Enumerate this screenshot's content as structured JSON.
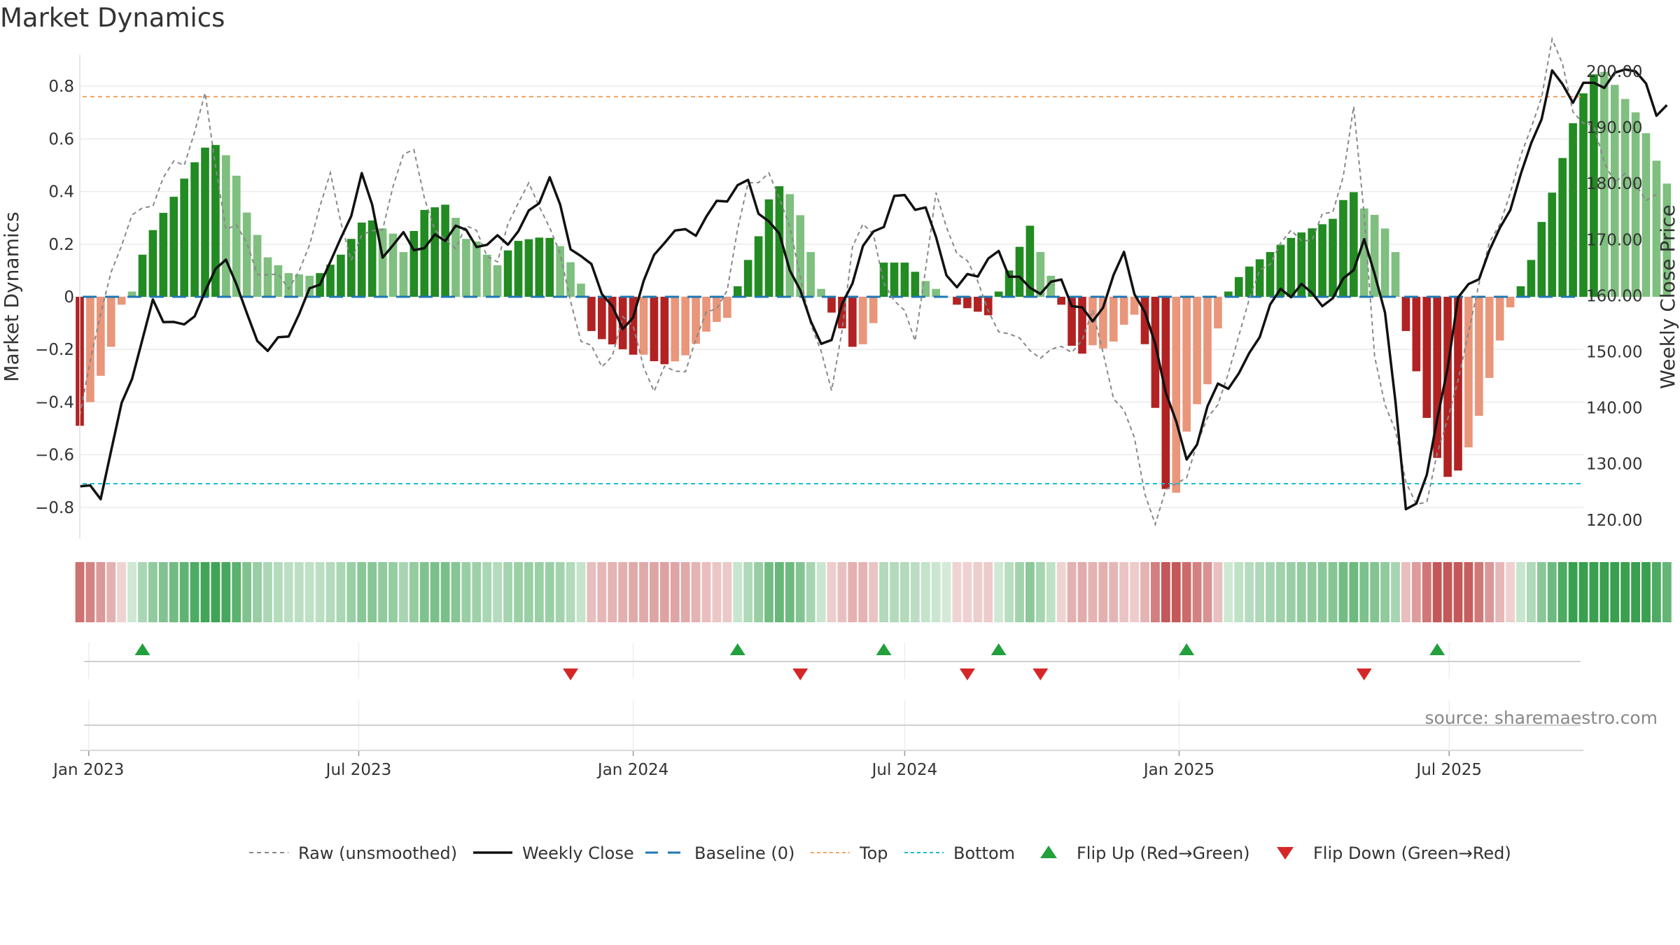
{
  "colors": {
    "bull_strong": "#228B22",
    "bull_weak": "#7FBF7F",
    "bear_strong": "#B22222",
    "bear_weak": "#E9967A",
    "raw": "#888888",
    "close": "#111111",
    "baseline": "#1F77B4",
    "top": "#F4A460",
    "bottom": "#17BECF",
    "flip_up": "#22A03C",
    "flip_down": "#D62728",
    "grid": "#EBEBEB"
  },
  "chart_data": {
    "type": "bar",
    "title": "Market Dynamics",
    "ylabel_left": "Market Dynamics",
    "ylabel_right": "Weekly Close Price",
    "source": "source: sharemaestro.com",
    "left_ylim": [
      -0.92,
      0.92
    ],
    "right_ylim": [
      116.6,
      203.0
    ],
    "left_ticks": [
      0.8,
      0.6,
      0.4,
      0.2,
      0,
      -0.2,
      -0.4,
      -0.6,
      -0.8
    ],
    "left_tick_labels": [
      "0.8",
      "0.6",
      "0.4",
      "0.2",
      "0",
      "−0.2",
      "−0.4",
      "−0.6",
      "−0.8"
    ],
    "right_ticks": [
      200,
      190,
      180,
      170,
      160,
      150,
      140,
      130,
      120
    ],
    "right_tick_labels": [
      "200.00",
      "190.00",
      "180.00",
      "170.00",
      "160.00",
      "150.00",
      "140.00",
      "130.00",
      "120.00"
    ],
    "x_start": "2022-12-26",
    "x_end": "2025-09-29",
    "x_ticks": [
      {
        "date": "2023-01-01",
        "label": "Jan 2023"
      },
      {
        "date": "2023-07-01",
        "label": "Jul 2023"
      },
      {
        "date": "2024-01-01",
        "label": "Jan 2024"
      },
      {
        "date": "2024-07-01",
        "label": "Jul 2024"
      },
      {
        "date": "2025-01-01",
        "label": "Jan 2025"
      },
      {
        "date": "2025-07-01",
        "label": "Jul 2025"
      }
    ],
    "top_level": 0.76,
    "bottom_level": -0.71,
    "baseline": 0,
    "series": [
      {
        "name": "Raw (unsmoothed)",
        "keys": [
          {
            "d": "2022-12-26",
            "v": -0.45
          },
          {
            "d": "2023-01-16",
            "v": 0.12
          },
          {
            "d": "2023-02-06",
            "v": 0.35
          },
          {
            "d": "2023-02-20",
            "v": 0.42
          },
          {
            "d": "2023-03-06",
            "v": 0.55
          },
          {
            "d": "2023-03-20",
            "v": 0.72
          },
          {
            "d": "2023-04-03",
            "v": 0.3
          },
          {
            "d": "2023-04-24",
            "v": 0.12
          },
          {
            "d": "2023-05-15",
            "v": 0.03
          },
          {
            "d": "2023-05-29",
            "v": 0.2
          },
          {
            "d": "2023-06-12",
            "v": 0.46
          },
          {
            "d": "2023-06-26",
            "v": 0.15
          },
          {
            "d": "2023-07-17",
            "v": 0.3
          },
          {
            "d": "2023-08-07",
            "v": 0.6
          },
          {
            "d": "2023-08-21",
            "v": 0.2
          },
          {
            "d": "2023-09-11",
            "v": 0.25
          },
          {
            "d": "2023-10-02",
            "v": 0.15
          },
          {
            "d": "2023-10-23",
            "v": 0.45
          },
          {
            "d": "2023-11-13",
            "v": 0.15
          },
          {
            "d": "2023-11-27",
            "v": -0.15
          },
          {
            "d": "2023-12-11",
            "v": -0.28
          },
          {
            "d": "2023-12-25",
            "v": -0.08
          },
          {
            "d": "2024-01-15",
            "v": -0.32
          },
          {
            "d": "2024-01-29",
            "v": -0.3
          },
          {
            "d": "2024-02-19",
            "v": -0.1
          },
          {
            "d": "2024-03-04",
            "v": 0.05
          },
          {
            "d": "2024-03-18",
            "v": 0.42
          },
          {
            "d": "2024-04-01",
            "v": 0.48
          },
          {
            "d": "2024-04-15",
            "v": 0.25
          },
          {
            "d": "2024-04-29",
            "v": -0.08
          },
          {
            "d": "2024-05-13",
            "v": -0.38
          },
          {
            "d": "2024-05-27",
            "v": 0.2
          },
          {
            "d": "2024-06-10",
            "v": 0.25
          },
          {
            "d": "2024-06-24",
            "v": -0.05
          },
          {
            "d": "2024-07-08",
            "v": -0.12
          },
          {
            "d": "2024-07-22",
            "v": 0.35
          },
          {
            "d": "2024-08-12",
            "v": 0.12
          },
          {
            "d": "2024-09-02",
            "v": -0.12
          },
          {
            "d": "2024-09-23",
            "v": -0.2
          },
          {
            "d": "2024-10-14",
            "v": -0.22
          },
          {
            "d": "2024-11-04",
            "v": -0.1
          },
          {
            "d": "2024-11-25",
            "v": -0.45
          },
          {
            "d": "2024-12-16",
            "v": -0.84
          },
          {
            "d": "2025-01-06",
            "v": -0.65
          },
          {
            "d": "2025-01-27",
            "v": -0.4
          },
          {
            "d": "2025-02-10",
            "v": -0.15
          },
          {
            "d": "2025-02-24",
            "v": 0.1
          },
          {
            "d": "2025-03-10",
            "v": 0.2
          },
          {
            "d": "2025-03-31",
            "v": 0.25
          },
          {
            "d": "2025-04-14",
            "v": 0.3
          },
          {
            "d": "2025-04-28",
            "v": 0.72
          },
          {
            "d": "2025-05-12",
            "v": -0.2
          },
          {
            "d": "2025-06-02",
            "v": -0.72
          },
          {
            "d": "2025-06-16",
            "v": -0.78
          },
          {
            "d": "2025-07-07",
            "v": -0.3
          },
          {
            "d": "2025-07-28",
            "v": 0.2
          },
          {
            "d": "2025-08-18",
            "v": 0.5
          },
          {
            "d": "2025-09-08",
            "v": 0.95
          },
          {
            "d": "2025-09-22",
            "v": 0.75
          },
          {
            "d": "2025-10-13",
            "v": 0.52
          },
          {
            "d": "2025-11-03",
            "v": 0.4
          },
          {
            "d": "2025-11-17",
            "v": 0.4
          }
        ]
      },
      {
        "name": "Weekly Close",
        "keys": [
          {
            "d": "2022-12-26",
            "v": 126.0
          },
          {
            "d": "2023-01-09",
            "v": 125.5
          },
          {
            "d": "2023-01-23",
            "v": 139.0
          },
          {
            "d": "2023-02-13",
            "v": 159.0
          },
          {
            "d": "2023-03-06",
            "v": 153.0
          },
          {
            "d": "2023-03-20",
            "v": 161.0
          },
          {
            "d": "2023-04-03",
            "v": 168.0
          },
          {
            "d": "2023-04-17",
            "v": 155.0
          },
          {
            "d": "2023-05-01",
            "v": 150.5
          },
          {
            "d": "2023-05-22",
            "v": 156.0
          },
          {
            "d": "2023-06-05",
            "v": 163.0
          },
          {
            "d": "2023-06-19",
            "v": 170.0
          },
          {
            "d": "2023-07-03",
            "v": 181.0
          },
          {
            "d": "2023-07-17",
            "v": 168.0
          },
          {
            "d": "2023-07-31",
            "v": 171.0
          },
          {
            "d": "2023-08-14",
            "v": 167.5
          },
          {
            "d": "2023-09-04",
            "v": 173.0
          },
          {
            "d": "2023-09-25",
            "v": 168.0
          },
          {
            "d": "2023-10-16",
            "v": 172.0
          },
          {
            "d": "2023-11-06",
            "v": 180.0
          },
          {
            "d": "2023-11-20",
            "v": 170.0
          },
          {
            "d": "2023-12-04",
            "v": 165.0
          },
          {
            "d": "2023-12-25",
            "v": 153.0
          },
          {
            "d": "2024-01-08",
            "v": 163.0
          },
          {
            "d": "2024-01-22",
            "v": 170.0
          },
          {
            "d": "2024-02-05",
            "v": 171.0
          },
          {
            "d": "2024-02-26",
            "v": 176.0
          },
          {
            "d": "2024-03-18",
            "v": 180.0
          },
          {
            "d": "2024-04-08",
            "v": 170.0
          },
          {
            "d": "2024-04-29",
            "v": 155.0
          },
          {
            "d": "2024-05-13",
            "v": 152.0
          },
          {
            "d": "2024-06-03",
            "v": 168.0
          },
          {
            "d": "2024-06-24",
            "v": 177.5
          },
          {
            "d": "2024-07-15",
            "v": 175.0
          },
          {
            "d": "2024-08-05",
            "v": 161.0
          },
          {
            "d": "2024-08-19",
            "v": 164.0
          },
          {
            "d": "2024-09-02",
            "v": 168.0
          },
          {
            "d": "2024-09-23",
            "v": 160.0
          },
          {
            "d": "2024-10-14",
            "v": 163.0
          },
          {
            "d": "2024-11-04",
            "v": 154.0
          },
          {
            "d": "2024-11-25",
            "v": 168.0
          },
          {
            "d": "2024-12-16",
            "v": 150.0
          },
          {
            "d": "2025-01-06",
            "v": 131.0
          },
          {
            "d": "2025-01-27",
            "v": 143.0
          },
          {
            "d": "2025-02-10",
            "v": 146.0
          },
          {
            "d": "2025-02-24",
            "v": 154.0
          },
          {
            "d": "2025-03-10",
            "v": 160.0
          },
          {
            "d": "2025-03-24",
            "v": 162.0
          },
          {
            "d": "2025-04-14",
            "v": 158.0
          },
          {
            "d": "2025-05-05",
            "v": 170.0
          },
          {
            "d": "2025-05-19",
            "v": 158.0
          },
          {
            "d": "2025-06-02",
            "v": 121.0
          },
          {
            "d": "2025-06-16",
            "v": 128.0
          },
          {
            "d": "2025-07-07",
            "v": 158.0
          },
          {
            "d": "2025-07-28",
            "v": 168.0
          },
          {
            "d": "2025-08-18",
            "v": 180.0
          },
          {
            "d": "2025-09-08",
            "v": 200.0
          },
          {
            "d": "2025-09-22",
            "v": 195.0
          },
          {
            "d": "2025-10-13",
            "v": 199.0
          },
          {
            "d": "2025-11-03",
            "v": 200.5
          },
          {
            "d": "2025-11-17",
            "v": 192.0
          },
          {
            "d": "2025-11-24",
            "v": 196.0
          }
        ]
      }
    ],
    "bars": [
      {
        "start": "2022-12-26",
        "end": "2023-01-16",
        "keys": [
          -0.49,
          -0.4,
          -0.3,
          -0.19
        ],
        "strong": [
          true,
          false,
          false,
          false
        ]
      },
      {
        "start": "2023-01-23",
        "end": "2023-01-30",
        "keys": [
          -0.03,
          0.02
        ],
        "strong": [
          false,
          false
        ]
      },
      {
        "start": "2023-02-06",
        "end": "2023-04-10",
        "keys": [
          0.16,
          0.28,
          0.35,
          0.44,
          0.52,
          0.59,
          0.56,
          0.46
        ],
        "strong": [
          true,
          true,
          true,
          true,
          true,
          true,
          false,
          false
        ]
      },
      {
        "start": "2023-04-17",
        "end": "2023-05-29",
        "keys": [
          0.32,
          0.15,
          0.09,
          0.08
        ],
        "strong": [
          false,
          false,
          false,
          false
        ]
      },
      {
        "start": "2023-06-05",
        "end": "2023-07-10",
        "keys": [
          0.09,
          0.13,
          0.18,
          0.28,
          0.29
        ],
        "strong": [
          true,
          true,
          true,
          true,
          true
        ]
      },
      {
        "start": "2023-07-17",
        "end": "2023-09-25",
        "keys": [
          0.26,
          0.24,
          0.17,
          0.25,
          0.33,
          0.34,
          0.35,
          0.3,
          0.22,
          0.21,
          0.16
        ],
        "strong": [
          false,
          false,
          false,
          true,
          true,
          true,
          true,
          false,
          false,
          false,
          false
        ]
      },
      {
        "start": "2023-10-02",
        "end": "2023-11-27",
        "keys": [
          0.12,
          0.21,
          0.22,
          0.23,
          0.18,
          0.05
        ],
        "strong": [
          false,
          true,
          true,
          true,
          false,
          false
        ]
      },
      {
        "start": "2023-12-04",
        "end": "2024-03-04",
        "keys": [
          -0.13,
          -0.17,
          -0.19,
          -0.22,
          -0.22,
          -0.26,
          -0.25,
          -0.22,
          -0.16,
          -0.1,
          -0.08
        ],
        "strong": [
          true,
          true,
          true,
          true,
          false,
          true,
          false,
          false,
          false,
          false,
          false
        ]
      },
      {
        "start": "2024-03-11",
        "end": "2024-05-06",
        "keys": [
          0.04,
          0.14,
          0.23,
          0.37,
          0.42,
          0.39,
          0.31,
          0.17,
          0.03
        ],
        "strong": [
          true,
          true,
          true,
          true,
          true,
          false,
          false,
          false,
          false
        ]
      },
      {
        "start": "2024-05-13",
        "end": "2024-06-10",
        "keys": [
          -0.06,
          -0.12,
          -0.19,
          -0.18,
          -0.1
        ],
        "strong": [
          true,
          true,
          true,
          false,
          false
        ]
      },
      {
        "start": "2024-06-17",
        "end": "2024-07-29",
        "keys": [
          0.13,
          0.13,
          0.06,
          0.0
        ],
        "strong": [
          true,
          true,
          false,
          false
        ]
      },
      {
        "start": "2024-08-05",
        "end": "2024-08-26",
        "keys": [
          -0.03,
          -0.07
        ],
        "strong": [
          true,
          true
        ]
      },
      {
        "start": "2024-09-02",
        "end": "2024-10-07",
        "keys": [
          0.02,
          0.1,
          0.19,
          0.27,
          0.17,
          0.08
        ],
        "strong": [
          true,
          true,
          true,
          true,
          false,
          false
        ]
      },
      {
        "start": "2024-10-14",
        "end": "2025-01-27",
        "keys": [
          -0.03,
          -0.15,
          -0.21,
          -0.22,
          -0.2,
          -0.18,
          -0.18,
          -0.22,
          -0.17,
          -0.13,
          -0.09,
          -0.06,
          -0.1,
          -0.2,
          -0.35,
          -0.53,
          -0.73,
          -0.78,
          -0.72,
          -0.53,
          -0.44,
          -0.4,
          -0.38,
          -0.26,
          -0.12
        ],
        "strong": [
          true,
          true,
          true,
          true,
          false,
          false,
          false,
          true,
          false,
          false,
          false,
          false,
          true,
          true,
          true,
          true,
          true,
          true,
          false,
          false,
          false,
          false,
          false,
          false,
          false
        ]
      },
      {
        "start": "2025-02-03",
        "end": "2025-05-26",
        "keys": [
          0.02,
          0.1,
          0.14,
          0.18,
          0.22,
          0.25,
          0.27,
          0.3,
          0.42,
          0.33,
          0.3,
          0.17
        ],
        "strong": [
          true,
          true,
          true,
          true,
          true,
          true,
          true,
          true,
          true,
          false,
          false,
          false
        ]
      },
      {
        "start": "2025-06-02",
        "end": "2025-08-11",
        "keys": [
          -0.13,
          -0.3,
          -0.5,
          -0.66,
          -0.7,
          -0.62,
          -0.5,
          -0.34,
          -0.18,
          -0.04
        ],
        "strong": [
          true,
          true,
          true,
          true,
          true,
          false,
          false,
          false,
          false,
          false
        ]
      },
      {
        "start": "2025-08-18",
        "end": "2025-11-24",
        "keys": [
          0.04,
          0.13,
          0.27,
          0.37,
          0.49,
          0.62,
          0.73,
          0.83,
          0.86,
          0.85,
          0.78,
          0.74,
          0.69,
          0.61,
          0.51,
          0.43
        ],
        "strong": [
          true,
          true,
          true,
          true,
          true,
          true,
          true,
          true,
          true,
          false,
          false,
          false,
          false,
          false,
          false,
          false
        ]
      }
    ],
    "flip_up_dates": [
      "2023-02-06",
      "2024-03-11",
      "2024-06-17",
      "2024-09-02",
      "2025-01-06",
      "2025-06-23"
    ],
    "flip_down_dates": [
      "2023-11-20",
      "2024-04-22",
      "2024-08-12",
      "2024-09-30",
      "2025-05-05"
    ]
  },
  "legend": [
    {
      "label": "Raw (unsmoothed)",
      "swatch": "raw-dash",
      "icon": "dashed-line-icon"
    },
    {
      "label": "Weekly Close",
      "swatch": "close-line",
      "icon": "solid-line-icon"
    },
    {
      "label": "Baseline (0)",
      "swatch": "baseline-dash",
      "icon": "long-dash-line-icon"
    },
    {
      "label": "Top",
      "swatch": "top-dot",
      "icon": "dotted-line-icon"
    },
    {
      "label": "Bottom",
      "swatch": "bottom-dot",
      "icon": "dotted-line-icon"
    },
    {
      "label": "Flip Up (Red→Green)",
      "swatch": "flip-up",
      "icon": "triangle-up-icon"
    },
    {
      "label": "Flip Down (Green→Red)",
      "swatch": "flip-down",
      "icon": "triangle-down-icon"
    }
  ]
}
